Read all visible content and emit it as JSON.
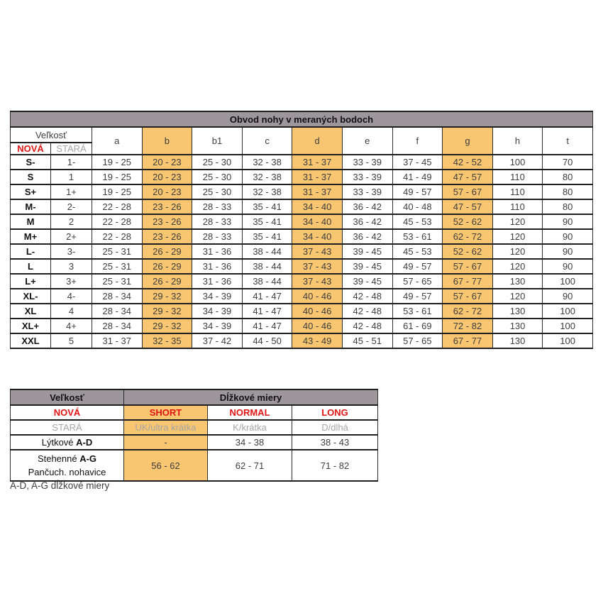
{
  "main_table": {
    "title": "Obvod nohy v meraných bodoch",
    "size_header": "Veľkosť",
    "new_label": "NOVÁ",
    "old_label": "STARÁ",
    "columns": [
      "a",
      "b",
      "b1",
      "c",
      "d",
      "e",
      "f",
      "g",
      "h",
      "t"
    ],
    "highlight_columns": [
      "b",
      "d",
      "g"
    ],
    "rows": [
      {
        "new": "S-",
        "old": "1-",
        "values": [
          "19 - 25",
          "20 - 23",
          "25 - 30",
          "32 - 38",
          "31 - 37",
          "33 - 39",
          "37 - 45",
          "42 - 52",
          "100",
          "70"
        ]
      },
      {
        "new": "S",
        "old": "1",
        "values": [
          "19 - 25",
          "20 - 23",
          "25 - 30",
          "32 - 38",
          "31 - 37",
          "33 - 39",
          "41 - 49",
          "47 - 57",
          "110",
          "80"
        ]
      },
      {
        "new": "S+",
        "old": "1+",
        "values": [
          "19 - 25",
          "20 - 23",
          "25 - 30",
          "32 - 38",
          "31 - 37",
          "33 - 39",
          "49 - 57",
          "57 - 67",
          "110",
          "80"
        ]
      },
      {
        "new": "M-",
        "old": "2-",
        "values": [
          "22 - 28",
          "23 - 26",
          "28 - 33",
          "35 - 41",
          "34 - 40",
          "36 - 42",
          "40 - 48",
          "47 - 57",
          "110",
          "80"
        ]
      },
      {
        "new": "M",
        "old": "2",
        "values": [
          "22 - 28",
          "23 - 26",
          "28 - 33",
          "35 - 41",
          "34 - 40",
          "36 - 42",
          "45 - 53",
          "52 - 62",
          "120",
          "90"
        ]
      },
      {
        "new": "M+",
        "old": "2+",
        "values": [
          "22 - 28",
          "23 - 26",
          "28 - 33",
          "35 - 41",
          "34 - 40",
          "36 - 42",
          "53 - 61",
          "62 - 72",
          "120",
          "90"
        ]
      },
      {
        "new": "L-",
        "old": "3-",
        "values": [
          "25 - 31",
          "26 - 29",
          "31 - 36",
          "38 - 44",
          "37 - 43",
          "39 - 45",
          "45 - 53",
          "52 - 62",
          "120",
          "90"
        ]
      },
      {
        "new": "L",
        "old": "3",
        "values": [
          "25 - 31",
          "26 - 29",
          "31 - 36",
          "38 - 44",
          "37 - 43",
          "39 - 45",
          "49 - 57",
          "57 - 67",
          "120",
          "90"
        ]
      },
      {
        "new": "L+",
        "old": "3+",
        "values": [
          "25 - 31",
          "26 - 29",
          "31 - 36",
          "38 - 44",
          "37 - 43",
          "39 - 45",
          "57 - 65",
          "67 - 77",
          "130",
          "100"
        ]
      },
      {
        "new": "XL-",
        "old": "4-",
        "values": [
          "28 - 34",
          "29 - 32",
          "34 - 39",
          "41 - 47",
          "40 - 46",
          "42 - 48",
          "49 - 57",
          "57 - 67",
          "120",
          "90"
        ]
      },
      {
        "new": "XL",
        "old": "4",
        "values": [
          "28 - 34",
          "29 - 32",
          "34 - 39",
          "41 - 47",
          "40 - 46",
          "42 - 48",
          "53 - 61",
          "62 - 72",
          "130",
          "100"
        ]
      },
      {
        "new": "XL+",
        "old": "4+",
        "values": [
          "28 - 34",
          "29 - 32",
          "34 - 39",
          "41 - 47",
          "40 - 46",
          "42 - 48",
          "61 - 69",
          "72 - 82",
          "130",
          "100"
        ]
      },
      {
        "new": "XXL",
        "old": "5",
        "values": [
          "31 - 37",
          "32 - 35",
          "37 - 42",
          "44 - 50",
          "43 - 49",
          "45 - 51",
          "57 - 65",
          "67 - 77",
          "130",
          "100"
        ]
      }
    ]
  },
  "length_table": {
    "size_header": "Veľkosť",
    "title": "Dĺžkové miery",
    "new_label": "NOVÁ",
    "old_label": "STARÁ",
    "variants": [
      "SHORT",
      "NORMAL",
      "LONG"
    ],
    "old_names": [
      "UK/ultra krátka",
      "K/krátka",
      "D/dlhá"
    ],
    "rows": [
      {
        "label_prefix": "Lýtkové ",
        "label_bold": "A-D",
        "label_line2": "",
        "values": [
          "-",
          "34 - 38",
          "38 - 43"
        ]
      },
      {
        "label_prefix": "Stehenné ",
        "label_bold": "A-G",
        "label_line2": "Pančuch. nohavice",
        "values": [
          "56 - 62",
          "62 - 71",
          "71 - 82"
        ]
      }
    ]
  },
  "footnote": "A-D, A-G dĺžkové miery",
  "colors": {
    "header_gray": "#9d979b",
    "highlight_orange": "#f8c571",
    "accent_red": "#e01515",
    "old_gray": "#a6a6a6",
    "cell_text": "#3e3e3e"
  }
}
